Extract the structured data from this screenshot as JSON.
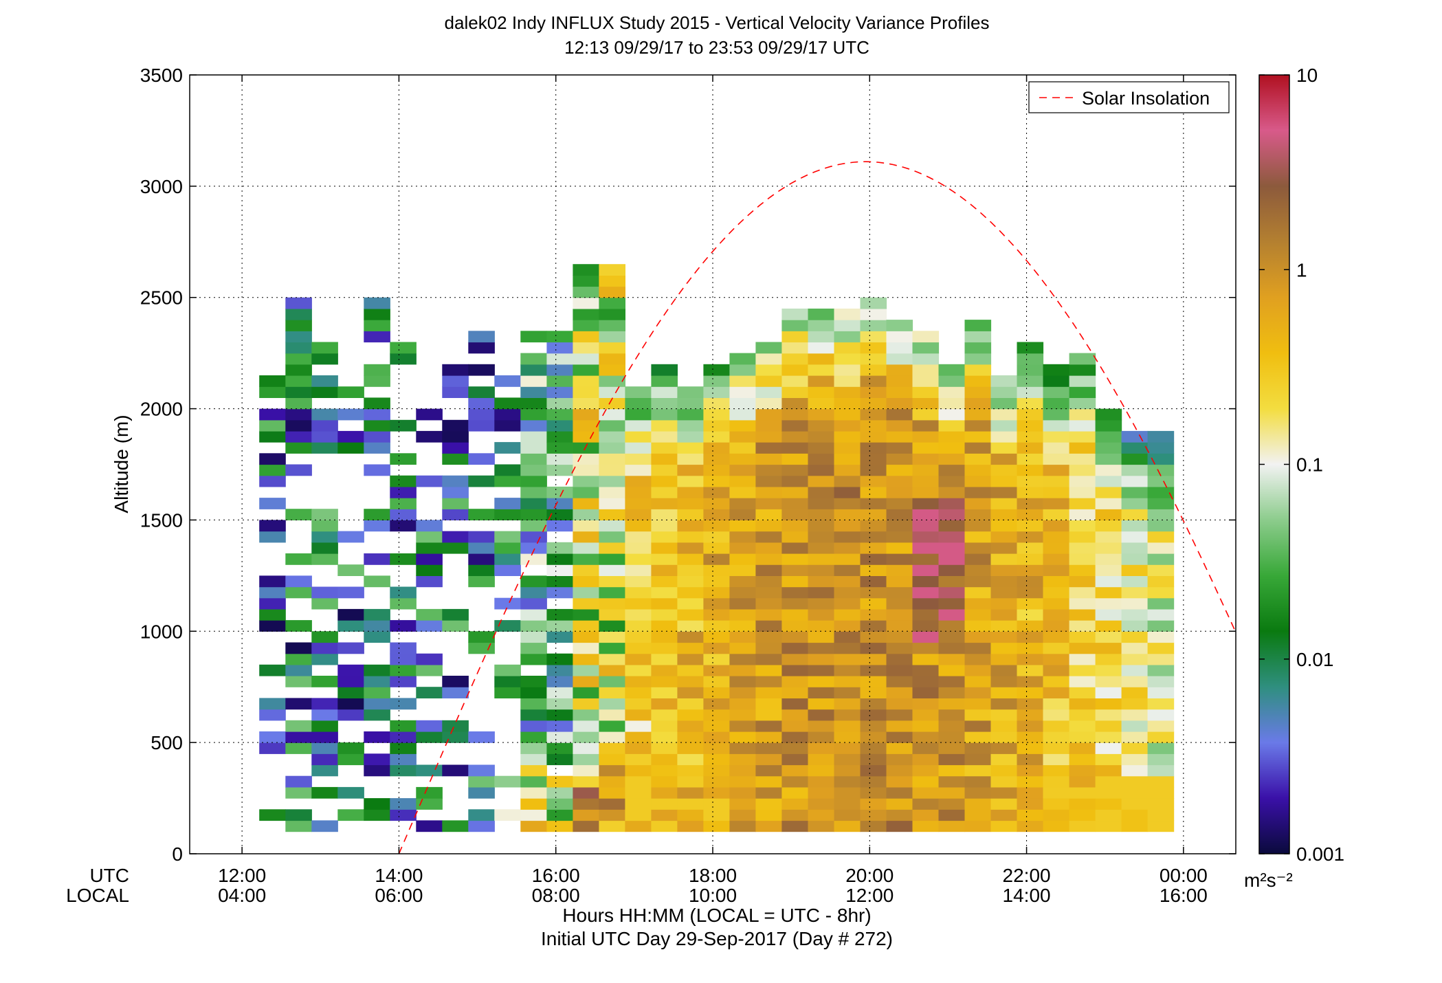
{
  "chart_data": {
    "type": "heatmap",
    "title": "dalek02 Indy INFLUX Study 2015 - Vertical Velocity Variance Profiles",
    "subtitle": "12:13 09/29/17 to 23:53 09/29/17  UTC",
    "ylabel": "Altitude (m)",
    "xlabel_line1": "Hours HH:MM  (LOCAL = UTC - 8hr)",
    "xlabel_line2": "Initial UTC Day 29-Sep-2017 (Day # 272)",
    "x_row_label_utc": "UTC",
    "x_row_label_local": "LOCAL",
    "x_ticks_utc": [
      "12:00",
      "14:00",
      "16:00",
      "18:00",
      "20:00",
      "22:00",
      "00:00"
    ],
    "x_ticks_local": [
      "04:00",
      "06:00",
      "08:00",
      "10:00",
      "12:00",
      "14:00",
      "16:00"
    ],
    "x_tick_hours": [
      12,
      14,
      16,
      18,
      20,
      22,
      24
    ],
    "xlim_hours": [
      11.333,
      24.667
    ],
    "y_ticks": [
      "0",
      "500",
      "1000",
      "1500",
      "2000",
      "2500",
      "3000",
      "3500"
    ],
    "ylim": [
      0,
      3500
    ],
    "grid": true,
    "colorbar": {
      "scale": "log",
      "range": [
        0.001,
        10
      ],
      "tick_labels": [
        "0.001",
        "0.01",
        "0.1",
        "1",
        "10"
      ],
      "unit": "m²s⁻²",
      "colors": [
        "#0a0a3c",
        "#3a10a8",
        "#6a7ae8",
        "#2f8f7f",
        "#0a7a10",
        "#38a838",
        "#8ccc8c",
        "#f2f2f2",
        "#f3dd40",
        "#f0be10",
        "#e0a020",
        "#b48030",
        "#8c5a3c",
        "#d85a8a",
        "#b01020"
      ]
    },
    "series": [
      {
        "name": "Solar Insolation",
        "style": "dashed",
        "color": "#ff0000",
        "peak_hour": 19.95,
        "peak_altitude": 3110,
        "halfwidth_hours": 5.95
      }
    ],
    "legend": {
      "placement": "top-right",
      "entries": [
        "Solar Insolation"
      ]
    },
    "time_start_hour": 12.22,
    "time_end_hour": 23.88,
    "bin_hours": 0.333,
    "bin_altitude_m": 50,
    "start_altitude_m": 100
  }
}
